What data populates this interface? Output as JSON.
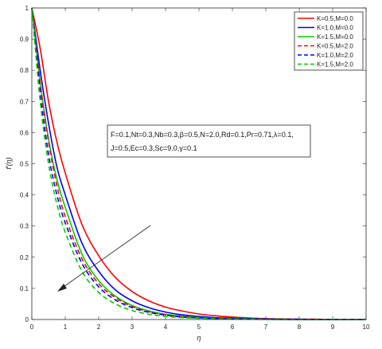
{
  "chart_data": {
    "type": "line",
    "xlabel": "η",
    "ylabel": "f′(η)",
    "xlim": [
      0,
      10
    ],
    "ylim": [
      0,
      1
    ],
    "xticks": [
      "0",
      "1",
      "2",
      "3",
      "4",
      "5",
      "6",
      "7",
      "8",
      "9",
      "10"
    ],
    "yticks": [
      "0",
      "0.1",
      "0.2",
      "0.3",
      "0.4",
      "0.5",
      "0.6",
      "0.7",
      "0.8",
      "0.9",
      "1"
    ],
    "legend_position": "top-right",
    "parameter_text": [
      "F=0.1,Nt=0.3,Nb=0.3,β=0.5,N=2.0,Rd=0.1,Pr=0.71,λ=0.1,",
      "J=0.5,Ec=0.3,Sc=9.0,γ=0.1"
    ],
    "x": [
      0,
      0.25,
      0.5,
      0.75,
      1,
      1.5,
      2,
      2.5,
      3,
      3.5,
      4,
      4.5,
      5,
      5.5,
      6,
      6.5,
      7,
      7.5,
      8,
      8.5,
      9,
      9.5,
      10
    ],
    "series": [
      {
        "name": "K=0.5,M=0.0",
        "color": "#ff0000",
        "style": "solid",
        "values": [
          1,
          0.87,
          0.7,
          0.57,
          0.47,
          0.305,
          0.205,
          0.135,
          0.09,
          0.06,
          0.04,
          0.027,
          0.018,
          0.012,
          0.008,
          0.005,
          0.003,
          0.002,
          0.001,
          0.001,
          0,
          0,
          0
        ]
      },
      {
        "name": "K=1.0,M=0.0",
        "color": "#0000ff",
        "style": "solid",
        "values": [
          1,
          0.8,
          0.63,
          0.49,
          0.4,
          0.245,
          0.155,
          0.095,
          0.06,
          0.038,
          0.024,
          0.015,
          0.01,
          0.006,
          0.004,
          0.003,
          0.002,
          0.001,
          0.001,
          0,
          0,
          0,
          0
        ]
      },
      {
        "name": "K=1.5,M=0.0",
        "color": "#00cc00",
        "style": "solid",
        "values": [
          1,
          0.76,
          0.58,
          0.45,
          0.36,
          0.21,
          0.125,
          0.075,
          0.045,
          0.028,
          0.017,
          0.011,
          0.007,
          0.004,
          0.003,
          0.002,
          0.001,
          0.001,
          0,
          0,
          0,
          0,
          0
        ]
      },
      {
        "name": "K=0.5,M=2.0",
        "color": "#ff0000",
        "style": "dashed",
        "values": [
          1,
          0.76,
          0.57,
          0.43,
          0.33,
          0.195,
          0.115,
          0.07,
          0.042,
          0.025,
          0.015,
          0.009,
          0.006,
          0.004,
          0.002,
          0.001,
          0.001,
          0,
          0,
          0,
          0,
          0,
          0
        ]
      },
      {
        "name": "K=1.0,M=2.0",
        "color": "#0000ff",
        "style": "dashed",
        "values": [
          1,
          0.73,
          0.53,
          0.4,
          0.31,
          0.18,
          0.105,
          0.063,
          0.038,
          0.023,
          0.014,
          0.008,
          0.005,
          0.003,
          0.002,
          0.001,
          0.001,
          0,
          0,
          0,
          0,
          0,
          0
        ]
      },
      {
        "name": "K=1.5,M=2.0",
        "color": "#00cc00",
        "style": "dashed",
        "values": [
          1,
          0.7,
          0.5,
          0.37,
          0.28,
          0.155,
          0.087,
          0.05,
          0.029,
          0.017,
          0.01,
          0.006,
          0.004,
          0.002,
          0.001,
          0.001,
          0,
          0,
          0,
          0,
          0,
          0,
          0
        ]
      }
    ]
  }
}
